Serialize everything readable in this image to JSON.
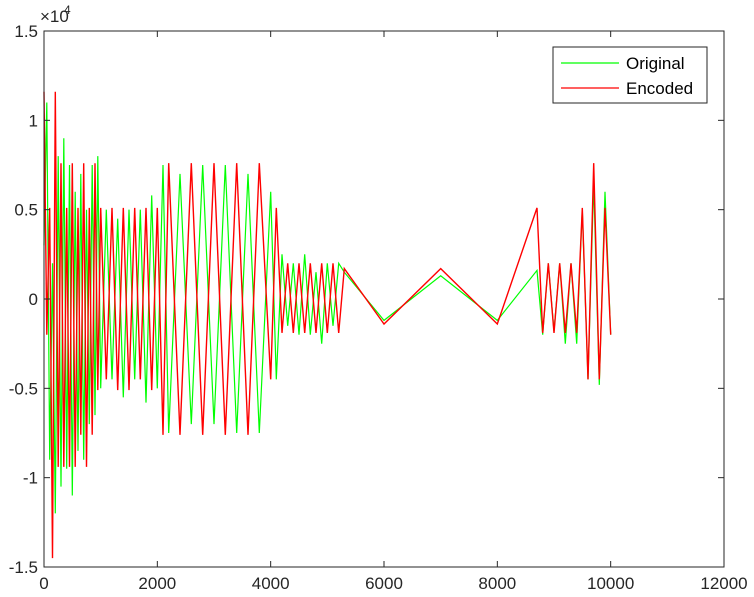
{
  "chart_data": {
    "type": "line",
    "title": "",
    "xlabel": "",
    "ylabel": "",
    "xlim": [
      0,
      12000
    ],
    "ylim": [
      -15000,
      15000
    ],
    "x_ticks": [
      0,
      2000,
      4000,
      6000,
      8000,
      10000,
      12000
    ],
    "x_tick_labels": [
      "0",
      "2000",
      "4000",
      "6000",
      "8000",
      "10000",
      "12000"
    ],
    "y_ticks": [
      -15000,
      -10000,
      -5000,
      0,
      5000,
      10000,
      15000
    ],
    "y_tick_labels": [
      "-1.5",
      "-1",
      "-0.5",
      "0",
      "0.5",
      "1",
      "1.5"
    ],
    "y_exponent": "×10",
    "y_exponent_power": "4",
    "grid": false,
    "legend_position": "top-right",
    "series": [
      {
        "name": "Original",
        "color": "#00ff00",
        "x": [
          0,
          50,
          100,
          150,
          200,
          250,
          300,
          350,
          400,
          450,
          500,
          550,
          600,
          650,
          700,
          750,
          800,
          850,
          900,
          950,
          1000,
          1100,
          1200,
          1300,
          1400,
          1500,
          1600,
          1700,
          1800,
          1900,
          2000,
          2100,
          2200,
          2400,
          2600,
          2800,
          3000,
          3200,
          3400,
          3600,
          3800,
          4000,
          4100,
          4200,
          4300,
          4400,
          4500,
          4600,
          4700,
          4800,
          4900,
          5000,
          5100,
          5200,
          5300,
          6000,
          7000,
          8000,
          8700,
          8800,
          8900,
          9000,
          9100,
          9200,
          9300,
          9400,
          9500,
          9600,
          9700,
          9800,
          9900,
          10000
        ],
        "y": [
          3000,
          11000,
          -9000,
          2000,
          -12000,
          8000,
          -10500,
          9000,
          -9500,
          7500,
          -11000,
          6000,
          -8500,
          7000,
          -9000,
          5000,
          -7000,
          7500,
          -6500,
          8000,
          -5000,
          5000,
          -4500,
          4500,
          -5500,
          5000,
          -4500,
          5000,
          -5800,
          5800,
          -5000,
          7500,
          -7500,
          7000,
          -7000,
          7500,
          -7000,
          7500,
          -7500,
          7000,
          -7500,
          6000,
          -4500,
          2500,
          -1500,
          2000,
          -2000,
          2500,
          -2000,
          1500,
          -2500,
          2000,
          -1500,
          2000,
          1500,
          -1200,
          1300,
          -1200,
          1600,
          -2000,
          2000,
          -1800,
          2000,
          -2500,
          2000,
          -2500,
          5000,
          -4500,
          6500,
          -4800,
          6000,
          -2000
        ]
      },
      {
        "name": "Encoded",
        "color": "#ff0000",
        "x": [
          0,
          50,
          100,
          150,
          200,
          250,
          300,
          350,
          400,
          450,
          500,
          550,
          600,
          650,
          700,
          750,
          800,
          850,
          900,
          950,
          1000,
          1100,
          1200,
          1300,
          1400,
          1500,
          1600,
          1700,
          1800,
          1900,
          2000,
          2100,
          2200,
          2400,
          2600,
          2800,
          3000,
          3200,
          3400,
          3600,
          3800,
          4000,
          4100,
          4200,
          4300,
          4400,
          4500,
          4600,
          4700,
          4800,
          4900,
          5000,
          5100,
          5200,
          5300,
          6000,
          7000,
          8000,
          8700,
          8800,
          8900,
          9000,
          9100,
          9200,
          9300,
          9400,
          9500,
          9600,
          9700,
          9800,
          9900,
          10000
        ],
        "y": [
          11600,
          -2000,
          5100,
          -14500,
          11600,
          -9400,
          7600,
          -9400,
          5100,
          -9400,
          7600,
          -9400,
          5100,
          -7600,
          7600,
          -9400,
          5100,
          -7600,
          7600,
          -5100,
          5100,
          -4500,
          5100,
          -5100,
          5100,
          -5100,
          5100,
          -4500,
          5100,
          -5100,
          5100,
          -7600,
          7600,
          -7600,
          7600,
          -7600,
          7600,
          -7600,
          7600,
          -7600,
          7600,
          -4500,
          5100,
          -1900,
          2000,
          -1900,
          2000,
          -1900,
          2000,
          -1900,
          2000,
          -1900,
          2000,
          -1900,
          1700,
          -1400,
          1700,
          -1400,
          5100,
          -1900,
          2000,
          -1900,
          2000,
          -1900,
          2000,
          -1900,
          5100,
          -4500,
          7600,
          -4500,
          5100,
          -2000
        ]
      }
    ]
  }
}
